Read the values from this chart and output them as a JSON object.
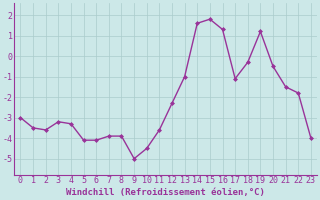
{
  "x": [
    0,
    1,
    2,
    3,
    4,
    5,
    6,
    7,
    8,
    9,
    10,
    11,
    12,
    13,
    14,
    15,
    16,
    17,
    18,
    19,
    20,
    21,
    22,
    23
  ],
  "y": [
    -3.0,
    -3.5,
    -3.6,
    -3.2,
    -3.3,
    -4.1,
    -4.1,
    -3.9,
    -3.9,
    -5.0,
    -4.5,
    -3.6,
    -2.3,
    -1.0,
    1.6,
    1.8,
    1.3,
    -1.1,
    -0.3,
    1.2,
    -0.5,
    -1.5,
    -1.8,
    -4.0
  ],
  "line_color": "#993399",
  "marker": "D",
  "marker_size": 2.0,
  "bg_color": "#cce8e8",
  "grid_color": "#aacccc",
  "axis_color": "#993399",
  "tick_color": "#993399",
  "xlabel": "Windchill (Refroidissement éolien,°C)",
  "ylim": [
    -5.8,
    2.6
  ],
  "xlim": [
    -0.5,
    23.5
  ],
  "yticks": [
    -5,
    -4,
    -3,
    -2,
    -1,
    0,
    1,
    2
  ],
  "xticks": [
    0,
    1,
    2,
    3,
    4,
    5,
    6,
    7,
    8,
    9,
    10,
    11,
    12,
    13,
    14,
    15,
    16,
    17,
    18,
    19,
    20,
    21,
    22,
    23
  ],
  "xlabel_fontsize": 6.5,
  "tick_fontsize": 6.0,
  "linewidth": 1.0
}
